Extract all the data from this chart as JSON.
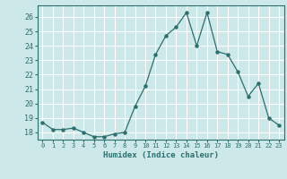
{
  "x": [
    0,
    1,
    2,
    3,
    4,
    5,
    6,
    7,
    8,
    9,
    10,
    11,
    12,
    13,
    14,
    15,
    16,
    17,
    18,
    19,
    20,
    21,
    22,
    23
  ],
  "y": [
    18.7,
    18.2,
    18.2,
    18.3,
    18.0,
    17.7,
    17.7,
    17.9,
    18.0,
    19.8,
    21.2,
    23.4,
    24.7,
    25.3,
    26.3,
    24.0,
    26.3,
    23.6,
    23.4,
    22.2,
    20.5,
    21.4,
    19.0,
    18.5
  ],
  "xlabel": "Humidex (Indice chaleur)",
  "line_color": "#2d6e6e",
  "marker": "o",
  "marker_size": 2.2,
  "bg_color": "#cce8e8",
  "grid_color": "#ffffff",
  "ylim": [
    17.5,
    26.8
  ],
  "yticks": [
    18,
    19,
    20,
    21,
    22,
    23,
    24,
    25,
    26
  ],
  "xticks": [
    0,
    1,
    2,
    3,
    4,
    5,
    6,
    7,
    8,
    9,
    10,
    11,
    12,
    13,
    14,
    15,
    16,
    17,
    18,
    19,
    20,
    21,
    22,
    23
  ],
  "xtick_labels": [
    "0",
    "1",
    "2",
    "3",
    "4",
    "5",
    "6",
    "7",
    "8",
    "9",
    "10",
    "11",
    "12",
    "13",
    "14",
    "15",
    "16",
    "17",
    "18",
    "19",
    "20",
    "21",
    "22",
    "23"
  ]
}
